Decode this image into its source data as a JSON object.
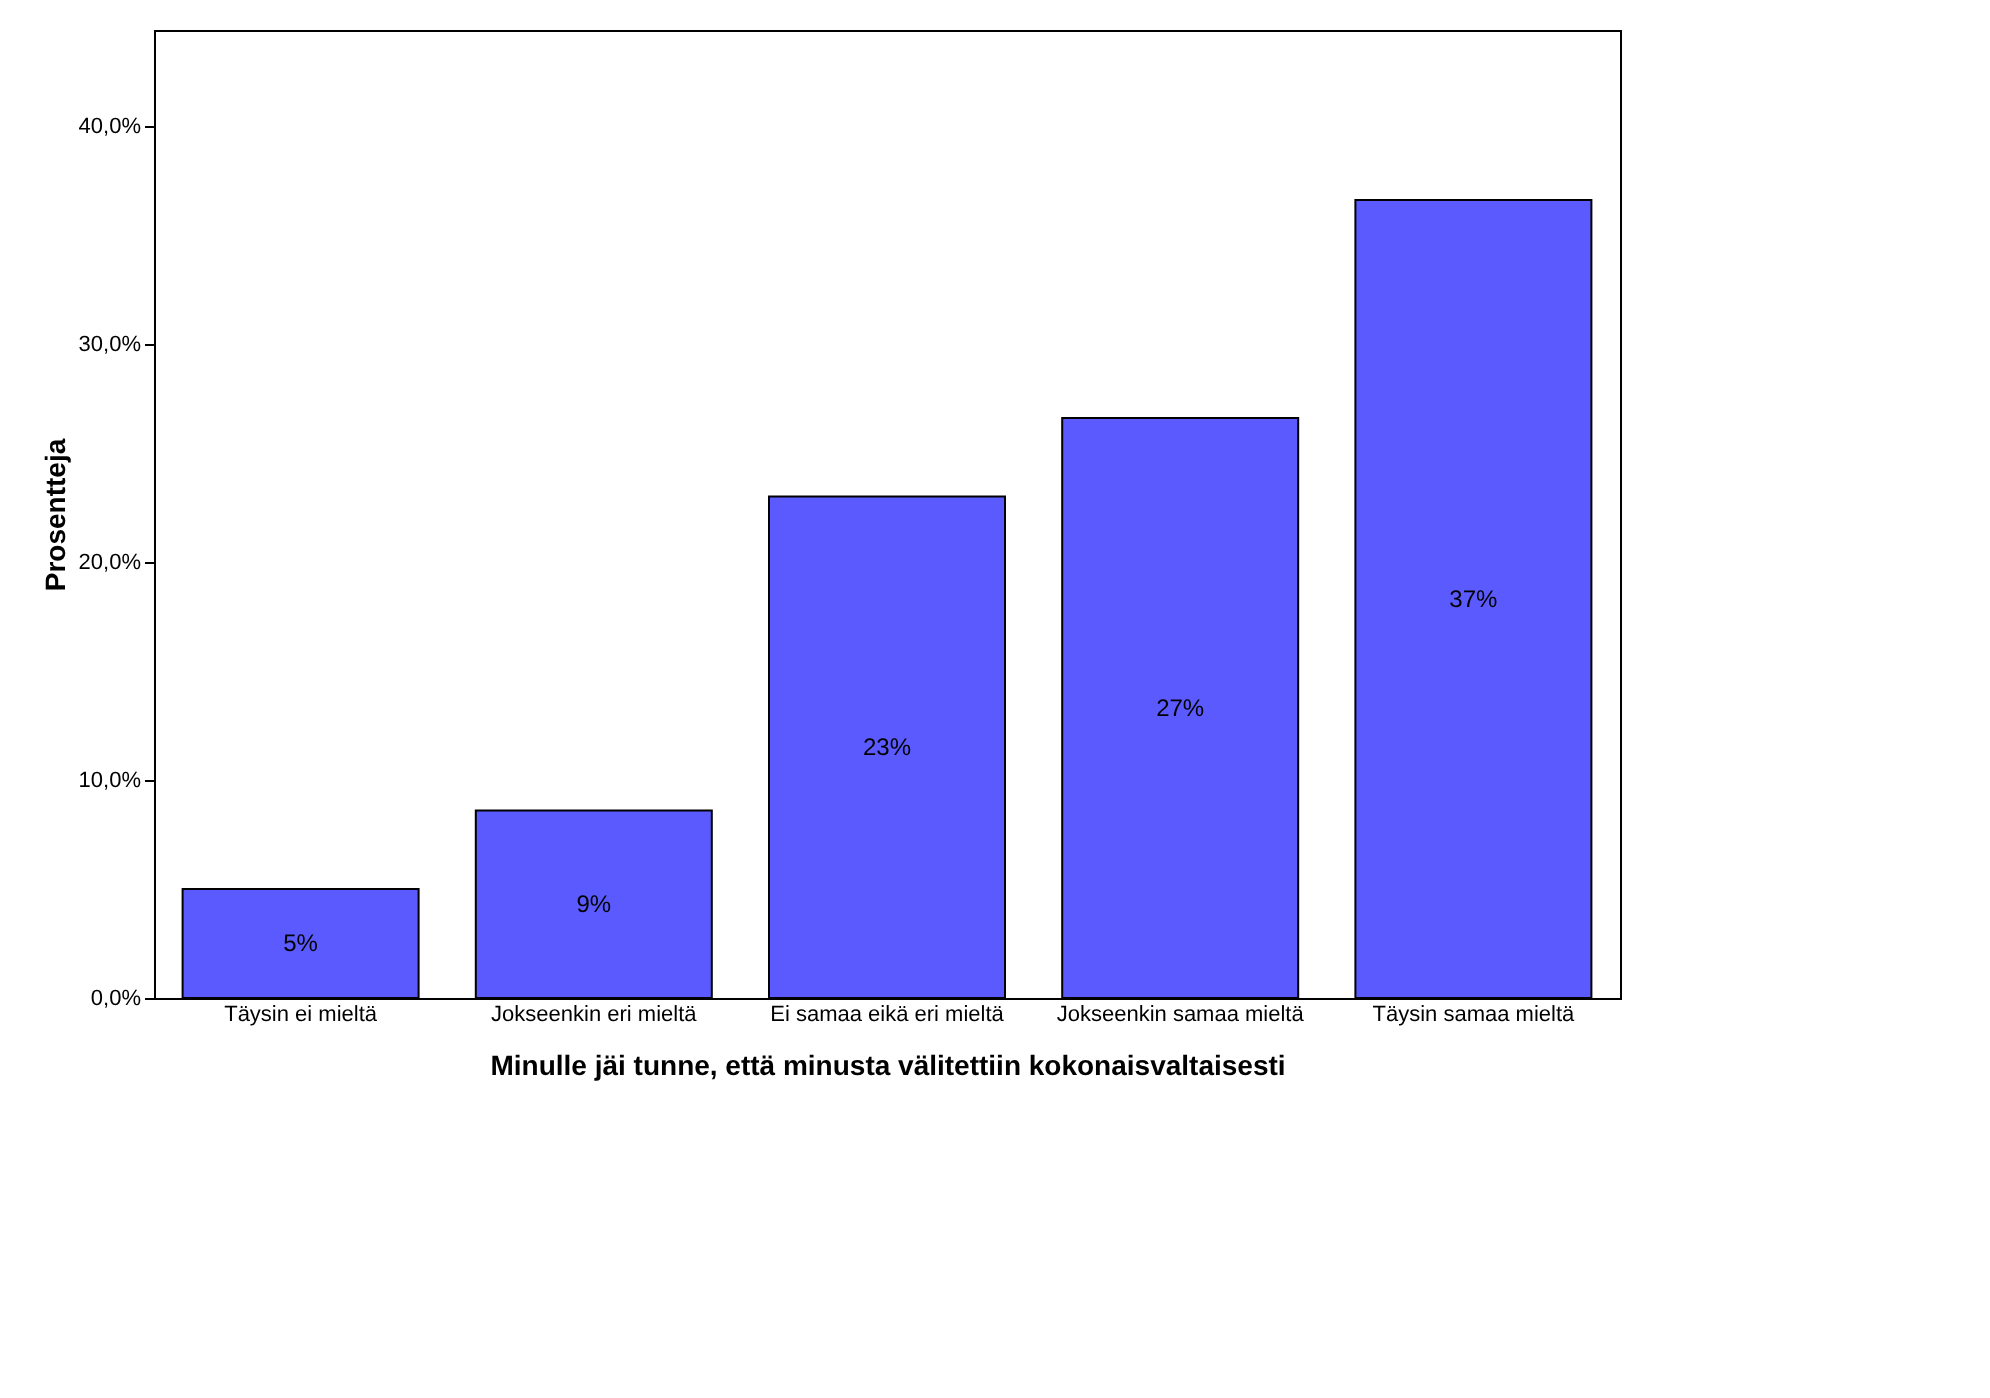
{
  "chart_data": {
    "type": "bar",
    "xlabel": "Minulle jäi tunne, että minusta välitettiin kokonaisvaltaisesti",
    "ylabel": "Prosentteja",
    "categories": [
      "Täysin ei mieltä",
      "Jokseenkin eri mieltä",
      "Ei samaa eikä eri mieltä",
      "Jokseenkin samaa mieltä",
      "Täysin samaa mieltä"
    ],
    "values": [
      5.0,
      8.6,
      23.0,
      26.6,
      36.6
    ],
    "value_labels": [
      "5%",
      "9%",
      "23%",
      "27%",
      "37%"
    ],
    "color": "#5a5aff",
    "ylim": [
      0,
      44.4
    ],
    "yticks": [
      {
        "value": 0,
        "label": "0,0%"
      },
      {
        "value": 10,
        "label": "10,0%"
      },
      {
        "value": 20,
        "label": "20,0%"
      },
      {
        "value": 30,
        "label": "30,0%"
      },
      {
        "value": 40,
        "label": "40,0%"
      }
    ],
    "grid": false
  }
}
